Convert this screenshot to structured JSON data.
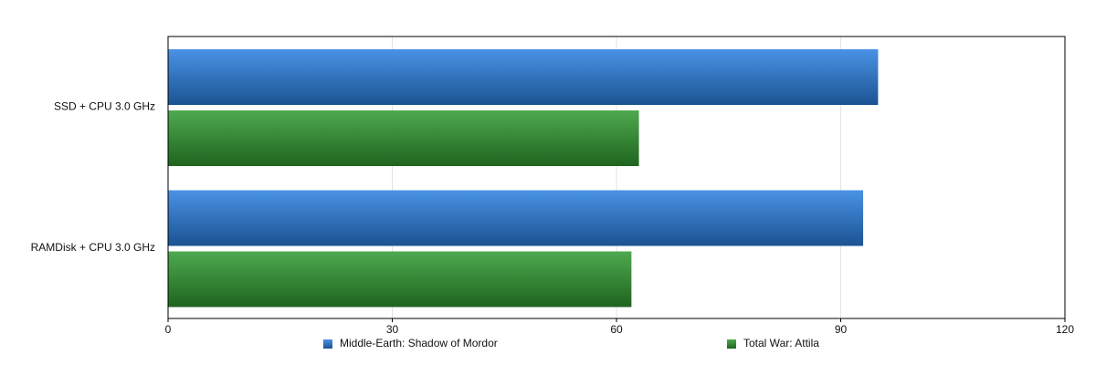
{
  "chart_data": {
    "type": "barh",
    "categories": [
      "SSD + CPU 3.0 GHz",
      "RAMDisk + CPU 3.0 GHz"
    ],
    "series": [
      {
        "name": "Middle-Earth: Shadow of Mordor",
        "color": "#2a7fe0",
        "values": [
          95,
          93
        ]
      },
      {
        "name": "Total War: Attila",
        "color": "#2f9a30",
        "values": [
          63,
          62
        ]
      }
    ],
    "xlim": [
      0,
      120
    ],
    "xticks": [
      0,
      30,
      60,
      90,
      120
    ],
    "grid": true,
    "legend": "bottom"
  }
}
